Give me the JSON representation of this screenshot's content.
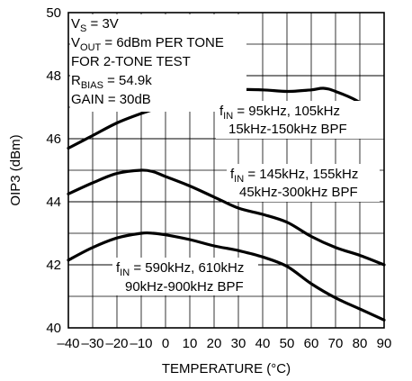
{
  "chart_data": {
    "type": "line",
    "ylabel": "OIP3 (dBm)",
    "xlabel": "TEMPERATURE (°C)",
    "xlim": [
      -40,
      90
    ],
    "ylim": [
      40,
      50
    ],
    "x_ticks": [
      "–40",
      "–30",
      "–20",
      "–10",
      "0",
      "10",
      "20",
      "30",
      "40",
      "50",
      "60",
      "70",
      "80",
      "90"
    ],
    "y_ticks": [
      "40",
      "42",
      "44",
      "46",
      "48",
      "50"
    ],
    "grid": true,
    "conditions": [
      {
        "main": "V",
        "sub": "S",
        "rest": " = 3V"
      },
      {
        "main": "V",
        "sub": "OUT",
        "rest": " = 6dBm PER TONE"
      },
      {
        "main": "FOR 2-TONE TEST",
        "sub": "",
        "rest": ""
      },
      {
        "main": "R",
        "sub": "BIAS",
        "rest": " = 54.9k"
      },
      {
        "main": "GAIN = 30dB",
        "sub": "",
        "rest": ""
      }
    ],
    "series": [
      {
        "label_main": "f",
        "label_sub": "IN",
        "label_rest": " = 95kHz, 105kHz",
        "label_line2": "15kHz-150kHz BPF",
        "x": [
          -40,
          -30,
          -20,
          -10,
          0,
          10,
          20,
          30,
          40,
          50,
          60,
          65,
          70,
          80,
          90
        ],
        "y": [
          45.7,
          46.1,
          46.5,
          46.8,
          47.05,
          47.25,
          47.4,
          47.55,
          47.55,
          47.5,
          47.55,
          47.6,
          47.5,
          47.15,
          46.5
        ]
      },
      {
        "label_main": "f",
        "label_sub": "IN",
        "label_rest": " = 145kHz, 155kHz",
        "label_line2": "45kHz-300kHz BPF",
        "x": [
          -40,
          -30,
          -20,
          -10,
          -5,
          0,
          10,
          20,
          30,
          40,
          50,
          60,
          70,
          80,
          90
        ],
        "y": [
          44.25,
          44.6,
          44.9,
          45.0,
          44.95,
          44.8,
          44.5,
          44.15,
          43.8,
          43.6,
          43.35,
          42.9,
          42.55,
          42.3,
          42.0
        ]
      },
      {
        "label_main": "f",
        "label_sub": "IN",
        "label_rest": " = 590kHz, 610kHz",
        "label_line2": "90kHz-900kHz BPF",
        "x": [
          -40,
          -30,
          -20,
          -10,
          -5,
          0,
          10,
          20,
          30,
          40,
          50,
          60,
          70,
          80,
          90
        ],
        "y": [
          42.15,
          42.55,
          42.85,
          43.0,
          43.0,
          42.95,
          42.8,
          42.6,
          42.45,
          42.25,
          41.95,
          41.4,
          40.95,
          40.6,
          40.25
        ]
      }
    ]
  }
}
